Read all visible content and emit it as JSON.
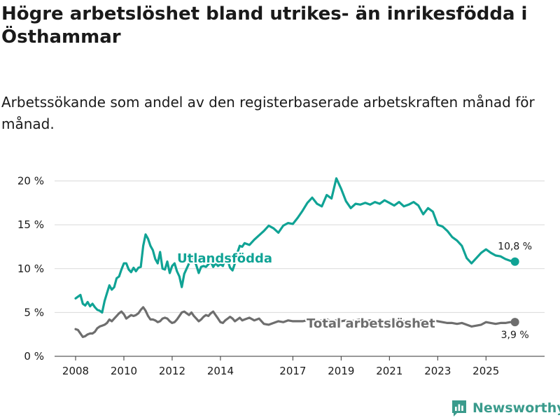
{
  "title": "Högre arbetslöshet bland utrikes- än inrikesfödda i Östhammar",
  "subtitle": "Arbetssökande som andel av den registerbaserade arbetskraften månad för månad.",
  "brand": {
    "name": "Newsworthy",
    "icon": "newsworthy-logo-icon"
  },
  "colors": {
    "utlandsfodda": "#10a395",
    "total": "#6e6e6e",
    "grid": "#d9d9d9",
    "text": "#1a1a1a",
    "brand": "#3a9b8c"
  },
  "chart_data": {
    "type": "line",
    "title": "Högre arbetslöshet bland utrikes- än inrikesfödda i Östhammar",
    "subtitle": "Arbetssökande som andel av den registerbaserade arbetskraften månad för månad.",
    "xlabel": "",
    "ylabel": "",
    "ylim": [
      0,
      21
    ],
    "xlim": [
      2008.0,
      2026.5
    ],
    "grid": true,
    "legend": "inline labels",
    "yticks": [
      0,
      5,
      10,
      15,
      20
    ],
    "ytick_labels": [
      "0 %",
      "5 %",
      "10 %",
      "15 %",
      "20 %"
    ],
    "xticks": [
      2008,
      2010,
      2012,
      2014,
      2017,
      2019,
      2021,
      2023,
      2025
    ],
    "xtick_labels": [
      "2008",
      "2010",
      "2012",
      "2014",
      "2017",
      "2019",
      "2021",
      "2023",
      "2025"
    ],
    "series": [
      {
        "name": "Utlandsfödda",
        "label": "Utlandsfödda",
        "color": "#10a395",
        "end_label": "10,8 %",
        "x": [
          2008.0,
          2008.1,
          2008.2,
          2008.3,
          2008.4,
          2008.5,
          2008.6,
          2008.7,
          2008.8,
          2008.9,
          2009.0,
          2009.1,
          2009.2,
          2009.3,
          2009.4,
          2009.5,
          2009.6,
          2009.7,
          2009.8,
          2009.9,
          2010.0,
          2010.1,
          2010.2,
          2010.3,
          2010.4,
          2010.5,
          2010.6,
          2010.7,
          2010.8,
          2010.9,
          2011.0,
          2011.1,
          2011.2,
          2011.3,
          2011.4,
          2011.5,
          2011.6,
          2011.7,
          2011.8,
          2011.9,
          2012.0,
          2012.1,
          2012.2,
          2012.3,
          2012.4,
          2012.5,
          2012.6,
          2012.7,
          2012.8,
          2012.9,
          2013.0,
          2013.1,
          2013.2,
          2013.3,
          2013.4,
          2013.5,
          2013.6,
          2013.7,
          2013.8,
          2013.9,
          2014.0,
          2014.1,
          2014.2,
          2014.3,
          2014.4,
          2014.5,
          2014.6,
          2014.7,
          2014.8,
          2014.9,
          2015.0,
          2015.2,
          2015.4,
          2015.6,
          2015.8,
          2016.0,
          2016.2,
          2016.4,
          2016.6,
          2016.8,
          2017.0,
          2017.2,
          2017.4,
          2017.6,
          2017.8,
          2018.0,
          2018.2,
          2018.4,
          2018.6,
          2018.8,
          2019.0,
          2019.2,
          2019.4,
          2019.6,
          2019.8,
          2020.0,
          2020.2,
          2020.4,
          2020.6,
          2020.8,
          2021.0,
          2021.2,
          2021.4,
          2021.6,
          2021.8,
          2022.0,
          2022.2,
          2022.4,
          2022.6,
          2022.8,
          2023.0,
          2023.2,
          2023.4,
          2023.6,
          2023.8,
          2024.0,
          2024.2,
          2024.4,
          2024.6,
          2024.8,
          2025.0,
          2025.2,
          2025.4,
          2025.6,
          2025.8,
          2026.0,
          2026.2
        ],
        "values": [
          6.6,
          6.8,
          7.0,
          6.0,
          5.8,
          6.2,
          5.7,
          6.0,
          5.6,
          5.3,
          5.2,
          5.0,
          6.3,
          7.2,
          8.1,
          7.6,
          7.9,
          8.9,
          9.1,
          9.9,
          10.6,
          10.6,
          9.9,
          9.6,
          10.1,
          9.7,
          10.1,
          10.2,
          12.6,
          13.9,
          13.4,
          12.6,
          12.1,
          11.1,
          10.6,
          11.9,
          10.0,
          9.9,
          10.8,
          9.5,
          10.3,
          10.6,
          9.7,
          9.1,
          7.9,
          9.4,
          10.0,
          10.6,
          11.5,
          11.1,
          10.4,
          9.5,
          10.2,
          10.3,
          10.2,
          10.5,
          10.8,
          10.2,
          10.6,
          10.3,
          10.5,
          10.3,
          11.2,
          10.9,
          10.1,
          9.8,
          10.6,
          11.8,
          12.6,
          12.5,
          12.9,
          12.7,
          13.3,
          13.8,
          14.3,
          14.9,
          14.6,
          14.1,
          14.9,
          15.2,
          15.1,
          15.8,
          16.6,
          17.5,
          18.1,
          17.4,
          17.1,
          18.4,
          18.0,
          20.3,
          19.1,
          17.7,
          16.9,
          17.4,
          17.3,
          17.5,
          17.3,
          17.6,
          17.4,
          17.8,
          17.5,
          17.2,
          17.6,
          17.1,
          17.3,
          17.6,
          17.2,
          16.2,
          16.9,
          16.5,
          15.0,
          14.8,
          14.3,
          13.6,
          13.2,
          12.6,
          11.2,
          10.6,
          11.2,
          11.8,
          12.2,
          11.8,
          11.5,
          11.4,
          11.1,
          10.9,
          10.8
        ]
      },
      {
        "name": "Total arbetslöshet",
        "label": "Total arbetslöshet",
        "color": "#6e6e6e",
        "end_label": "3,9 %",
        "x": [
          2008.0,
          2008.1,
          2008.2,
          2008.3,
          2008.4,
          2008.5,
          2008.6,
          2008.7,
          2008.8,
          2008.9,
          2009.0,
          2009.1,
          2009.2,
          2009.3,
          2009.4,
          2009.5,
          2009.6,
          2009.7,
          2009.8,
          2009.9,
          2010.0,
          2010.1,
          2010.2,
          2010.3,
          2010.4,
          2010.5,
          2010.6,
          2010.7,
          2010.8,
          2010.9,
          2011.0,
          2011.1,
          2011.2,
          2011.3,
          2011.4,
          2011.5,
          2011.6,
          2011.7,
          2011.8,
          2011.9,
          2012.0,
          2012.1,
          2012.2,
          2012.3,
          2012.4,
          2012.5,
          2012.6,
          2012.7,
          2012.8,
          2012.9,
          2013.0,
          2013.1,
          2013.2,
          2013.3,
          2013.4,
          2013.5,
          2013.6,
          2013.7,
          2013.8,
          2013.9,
          2014.0,
          2014.1,
          2014.2,
          2014.3,
          2014.4,
          2014.5,
          2014.6,
          2014.7,
          2014.8,
          2014.9,
          2015.0,
          2015.2,
          2015.4,
          2015.6,
          2015.8,
          2016.0,
          2016.2,
          2016.4,
          2016.6,
          2016.8,
          2017.0,
          2017.2,
          2017.4,
          2017.6,
          2017.8,
          2018.0,
          2018.2,
          2018.4,
          2018.6,
          2018.8,
          2019.0,
          2019.2,
          2019.4,
          2019.6,
          2019.8,
          2020.0,
          2020.2,
          2020.4,
          2020.6,
          2020.8,
          2021.0,
          2021.2,
          2021.4,
          2021.6,
          2021.8,
          2022.0,
          2022.2,
          2022.4,
          2022.6,
          2022.8,
          2023.0,
          2023.2,
          2023.4,
          2023.6,
          2023.8,
          2024.0,
          2024.2,
          2024.4,
          2024.6,
          2024.8,
          2025.0,
          2025.2,
          2025.4,
          2025.6,
          2025.8,
          2026.0,
          2026.2
        ],
        "values": [
          3.1,
          3.0,
          2.6,
          2.2,
          2.3,
          2.5,
          2.6,
          2.6,
          2.8,
          3.2,
          3.4,
          3.5,
          3.6,
          3.8,
          4.2,
          4.0,
          4.3,
          4.6,
          4.9,
          5.1,
          4.8,
          4.3,
          4.5,
          4.7,
          4.6,
          4.7,
          4.9,
          5.3,
          5.6,
          5.2,
          4.6,
          4.2,
          4.2,
          4.1,
          3.9,
          4.0,
          4.3,
          4.4,
          4.3,
          4.0,
          3.8,
          3.9,
          4.2,
          4.6,
          5.0,
          5.1,
          4.9,
          4.7,
          5.0,
          4.6,
          4.3,
          4.0,
          4.2,
          4.5,
          4.7,
          4.6,
          4.9,
          5.1,
          4.7,
          4.3,
          3.9,
          3.8,
          4.1,
          4.3,
          4.5,
          4.3,
          4.0,
          4.2,
          4.4,
          4.1,
          4.2,
          4.4,
          4.1,
          4.3,
          3.7,
          3.6,
          3.8,
          4.0,
          3.9,
          4.1,
          4.0,
          4.0,
          4.0,
          4.1,
          4.2,
          4.0,
          4.1,
          4.2,
          4.0,
          4.1,
          4.0,
          4.1,
          4.0,
          4.1,
          4.2,
          4.0,
          4.1,
          4.0,
          4.1,
          4.0,
          4.1,
          4.0,
          4.1,
          4.0,
          4.0,
          4.1,
          4.0,
          4.1,
          4.0,
          4.1,
          4.0,
          3.9,
          3.8,
          3.8,
          3.7,
          3.8,
          3.6,
          3.4,
          3.5,
          3.6,
          3.9,
          3.8,
          3.7,
          3.8,
          3.8,
          3.9,
          3.9
        ]
      }
    ]
  }
}
